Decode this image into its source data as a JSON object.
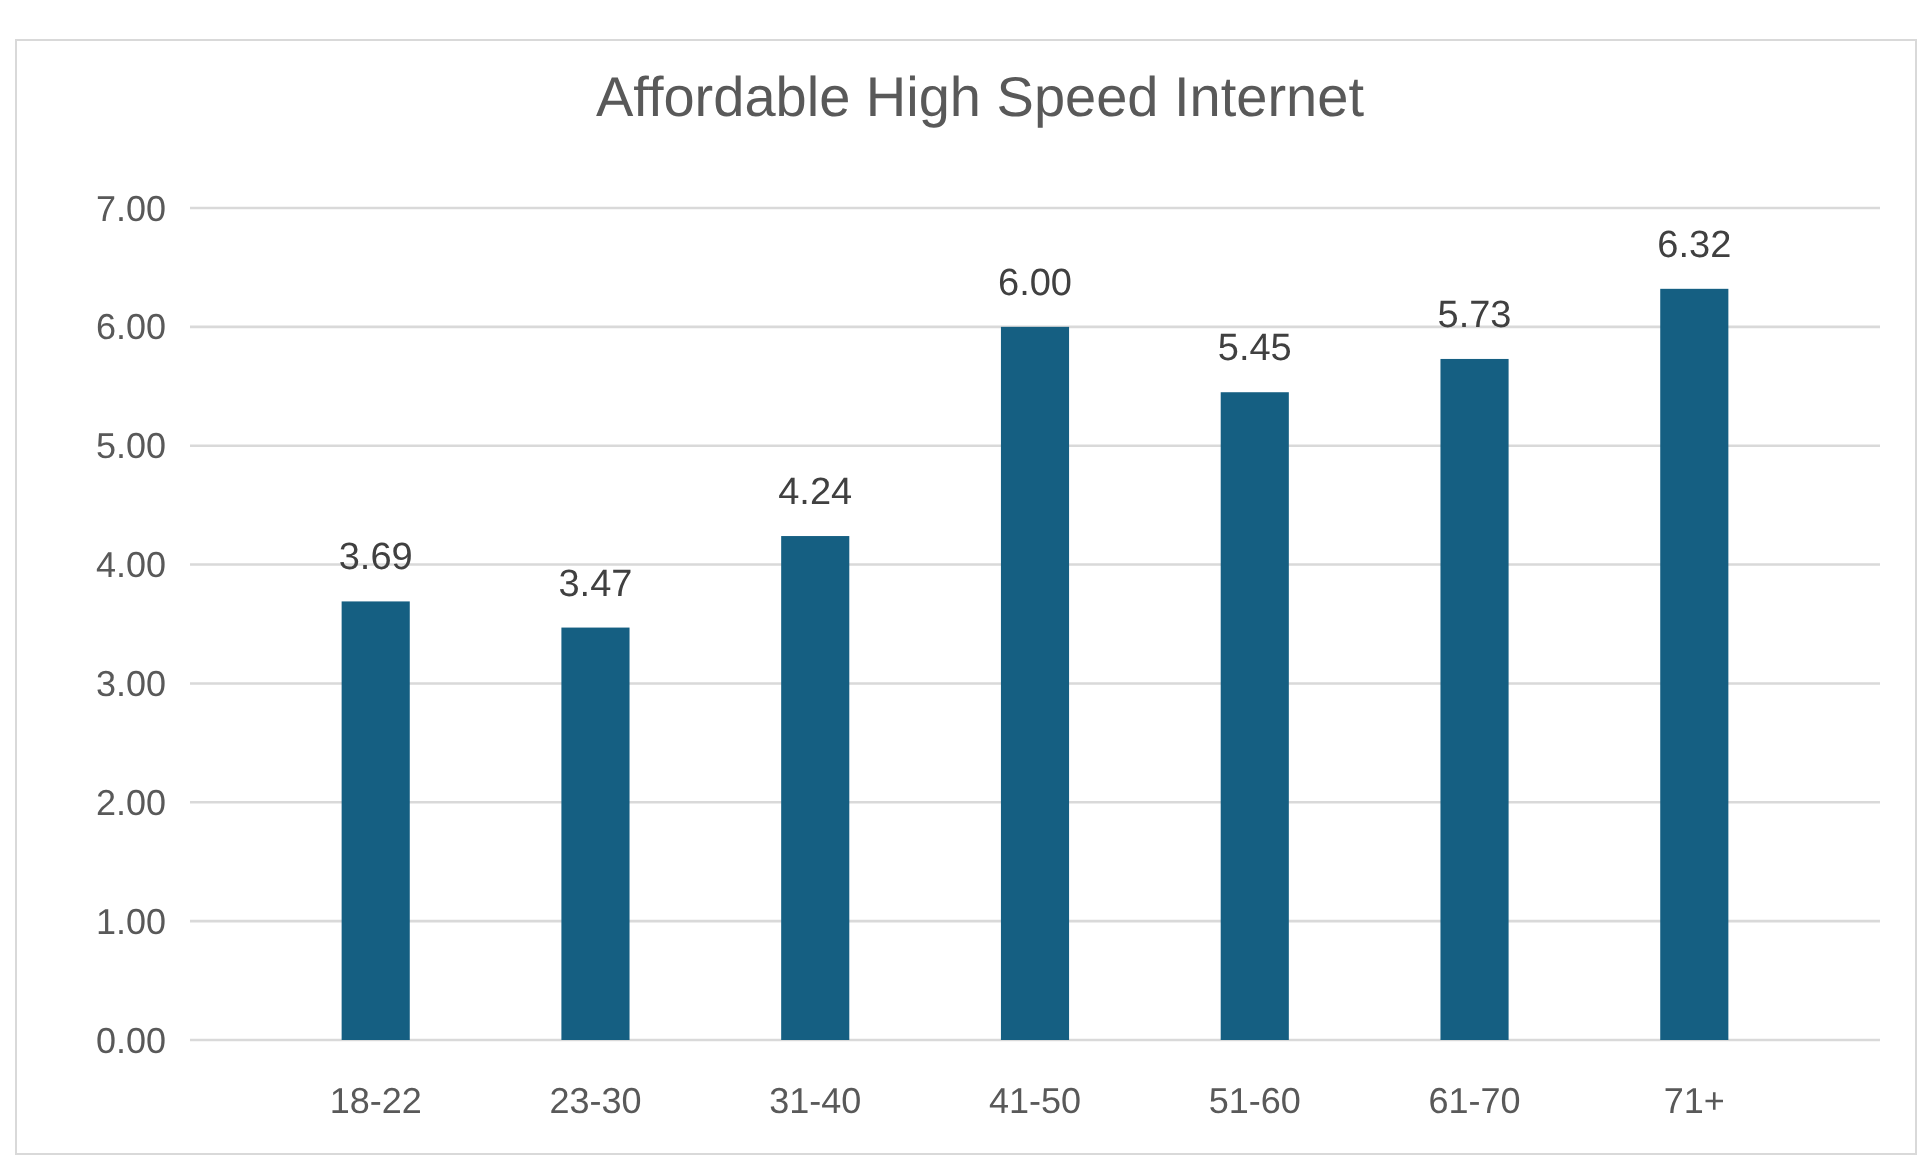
{
  "chart_data": {
    "type": "bar",
    "title": "Affordable High Speed Internet",
    "categories": [
      "18-22",
      "23-30",
      "31-40",
      "41-50",
      "51-60",
      "61-70",
      "71+"
    ],
    "values": [
      3.69,
      3.47,
      4.24,
      6.0,
      5.45,
      5.73,
      6.32
    ],
    "value_labels": [
      "3.69",
      "3.47",
      "4.24",
      "6.00",
      "5.45",
      "5.73",
      "6.32"
    ],
    "color": "#155f82",
    "ylim": [
      0,
      7
    ],
    "yticks": [
      {
        "value": 0,
        "label": "0.00"
      },
      {
        "value": 1,
        "label": "1.00"
      },
      {
        "value": 2,
        "label": "2.00"
      },
      {
        "value": 3,
        "label": "3.00"
      },
      {
        "value": 4,
        "label": "4.00"
      },
      {
        "value": 5,
        "label": "5.00"
      },
      {
        "value": 6,
        "label": "6.00"
      },
      {
        "value": 7,
        "label": "7.00"
      }
    ],
    "grid": "y"
  }
}
